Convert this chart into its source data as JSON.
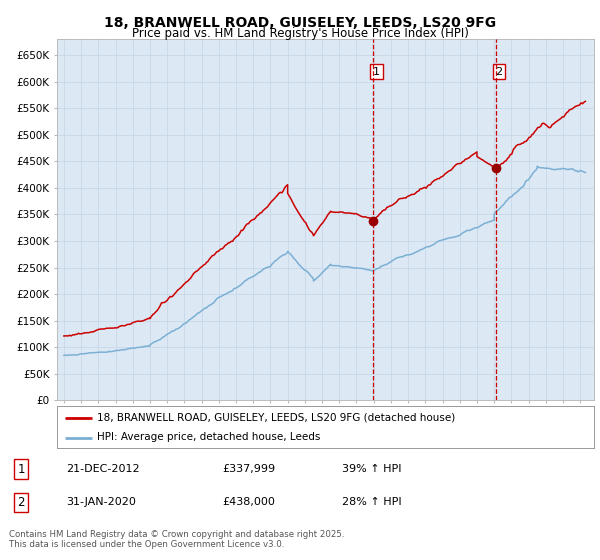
{
  "title": "18, BRANWELL ROAD, GUISELEY, LEEDS, LS20 9FG",
  "subtitle": "Price paid vs. HM Land Registry's House Price Index (HPI)",
  "background_color": "#ffffff",
  "plot_bg_color": "#dce9f5",
  "grid_color": "#c8d8e8",
  "red_line_color": "#cc0000",
  "blue_line_color": "#7bafd4",
  "ylim": [
    0,
    680000
  ],
  "yticks": [
    0,
    50000,
    100000,
    150000,
    200000,
    250000,
    300000,
    350000,
    400000,
    450000,
    500000,
    550000,
    600000,
    650000
  ],
  "xlabel": "",
  "ylabel": "",
  "legend_label_red": "18, BRANWELL ROAD, GUISELEY, LEEDS, LS20 9FG (detached house)",
  "legend_label_blue": "HPI: Average price, detached house, Leeds",
  "marker1_label": "1",
  "marker1_date": "21-DEC-2012",
  "marker1_price": "£337,999",
  "marker1_hpi": "39% ↑ HPI",
  "marker2_label": "2",
  "marker2_date": "31-JAN-2020",
  "marker2_price": "£438,000",
  "marker2_hpi": "28% ↑ HPI",
  "footer": "Contains HM Land Registry data © Crown copyright and database right 2025.\nThis data is licensed under the Open Government Licence v3.0.",
  "marker1_x_year": 2012.97,
  "marker2_x_year": 2020.08,
  "marker1_y": 337999,
  "marker2_y": 438000,
  "xlim_min": 1994.6,
  "xlim_max": 2025.8
}
